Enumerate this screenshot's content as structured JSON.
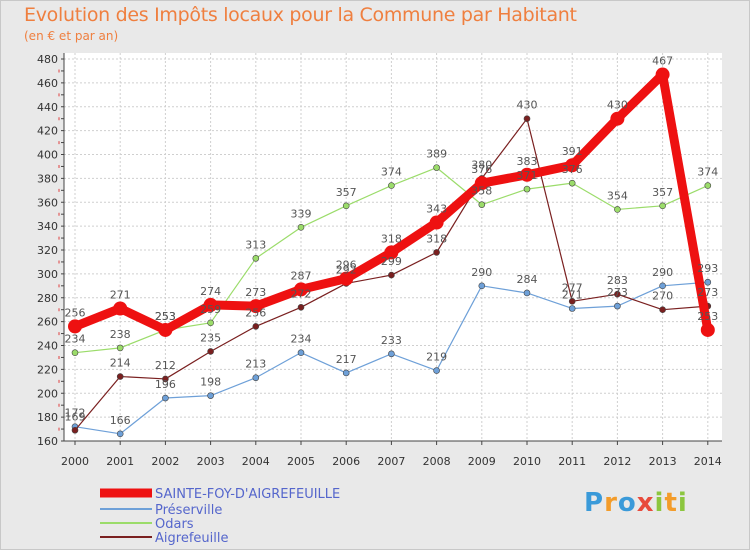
{
  "title": "Evolution des Impôts locaux pour la Commune par Habitant",
  "subtitle": "(en € et par an)",
  "logo": {
    "letters": [
      "P",
      "r",
      "o",
      "x",
      "i",
      "t",
      "i"
    ]
  },
  "chart_data": {
    "type": "line",
    "title": "Evolution des Impôts locaux pour la Commune par Habitant",
    "subtitle": "(en € et par an)",
    "x": [
      "2000",
      "2001",
      "2002",
      "2003",
      "2004",
      "2005",
      "2006",
      "2007",
      "2008",
      "2009",
      "2010",
      "2011",
      "2012",
      "2013",
      "2014"
    ],
    "yticks": [
      160,
      180,
      200,
      220,
      240,
      260,
      280,
      300,
      320,
      340,
      360,
      380,
      400,
      420,
      440,
      460,
      480
    ],
    "ylim": [
      160,
      480
    ],
    "grid": true,
    "legend": "bottom-left",
    "series": [
      {
        "name": "SAINTE-FOY-D'AIGREFEUILLE",
        "color": "#ee1111",
        "width": 9,
        "marker": 7,
        "values": [
          256,
          271,
          253,
          274,
          273,
          287,
          296,
          318,
          343,
          376,
          383,
          391,
          430,
          467,
          253
        ]
      },
      {
        "name": "Préserville",
        "color": "#6ea0d8",
        "width": 1.2,
        "marker": 3,
        "values": [
          172,
          166,
          196,
          198,
          213,
          234,
          217,
          233,
          219,
          290,
          284,
          271,
          273,
          290,
          293
        ]
      },
      {
        "name": "Odars",
        "color": "#9bdc6a",
        "width": 1.2,
        "marker": 3,
        "values": [
          234,
          238,
          253,
          259,
          313,
          339,
          357,
          374,
          389,
          358,
          371,
          376,
          354,
          357,
          374
        ]
      },
      {
        "name": "Aigrefeuille",
        "color": "#7a2020",
        "width": 1.2,
        "marker": 3,
        "values": [
          169,
          214,
          212,
          235,
          256,
          272,
          292,
          299,
          318,
          380,
          430,
          277,
          283,
          270,
          273
        ]
      }
    ],
    "data_labels": [
      [
        "256",
        "271",
        "253",
        "274",
        "273",
        "287",
        "296",
        "318",
        "343",
        "376",
        "383",
        "391",
        "430",
        "467",
        "253"
      ],
      [
        "172",
        "166",
        "196",
        "198",
        "213",
        "234",
        "217",
        "233",
        "219",
        "290",
        "284",
        "271",
        "273",
        "290",
        "293"
      ],
      [
        "234",
        "238",
        "253",
        "259",
        "313",
        "339",
        "357",
        "374",
        "389",
        "358",
        "371",
        "376",
        "354",
        "357",
        "374"
      ],
      [
        "169",
        "214",
        "212",
        "235",
        "256",
        "272",
        "292",
        "299",
        "318",
        "380",
        "430",
        "277",
        "283",
        "270",
        "273"
      ]
    ]
  }
}
